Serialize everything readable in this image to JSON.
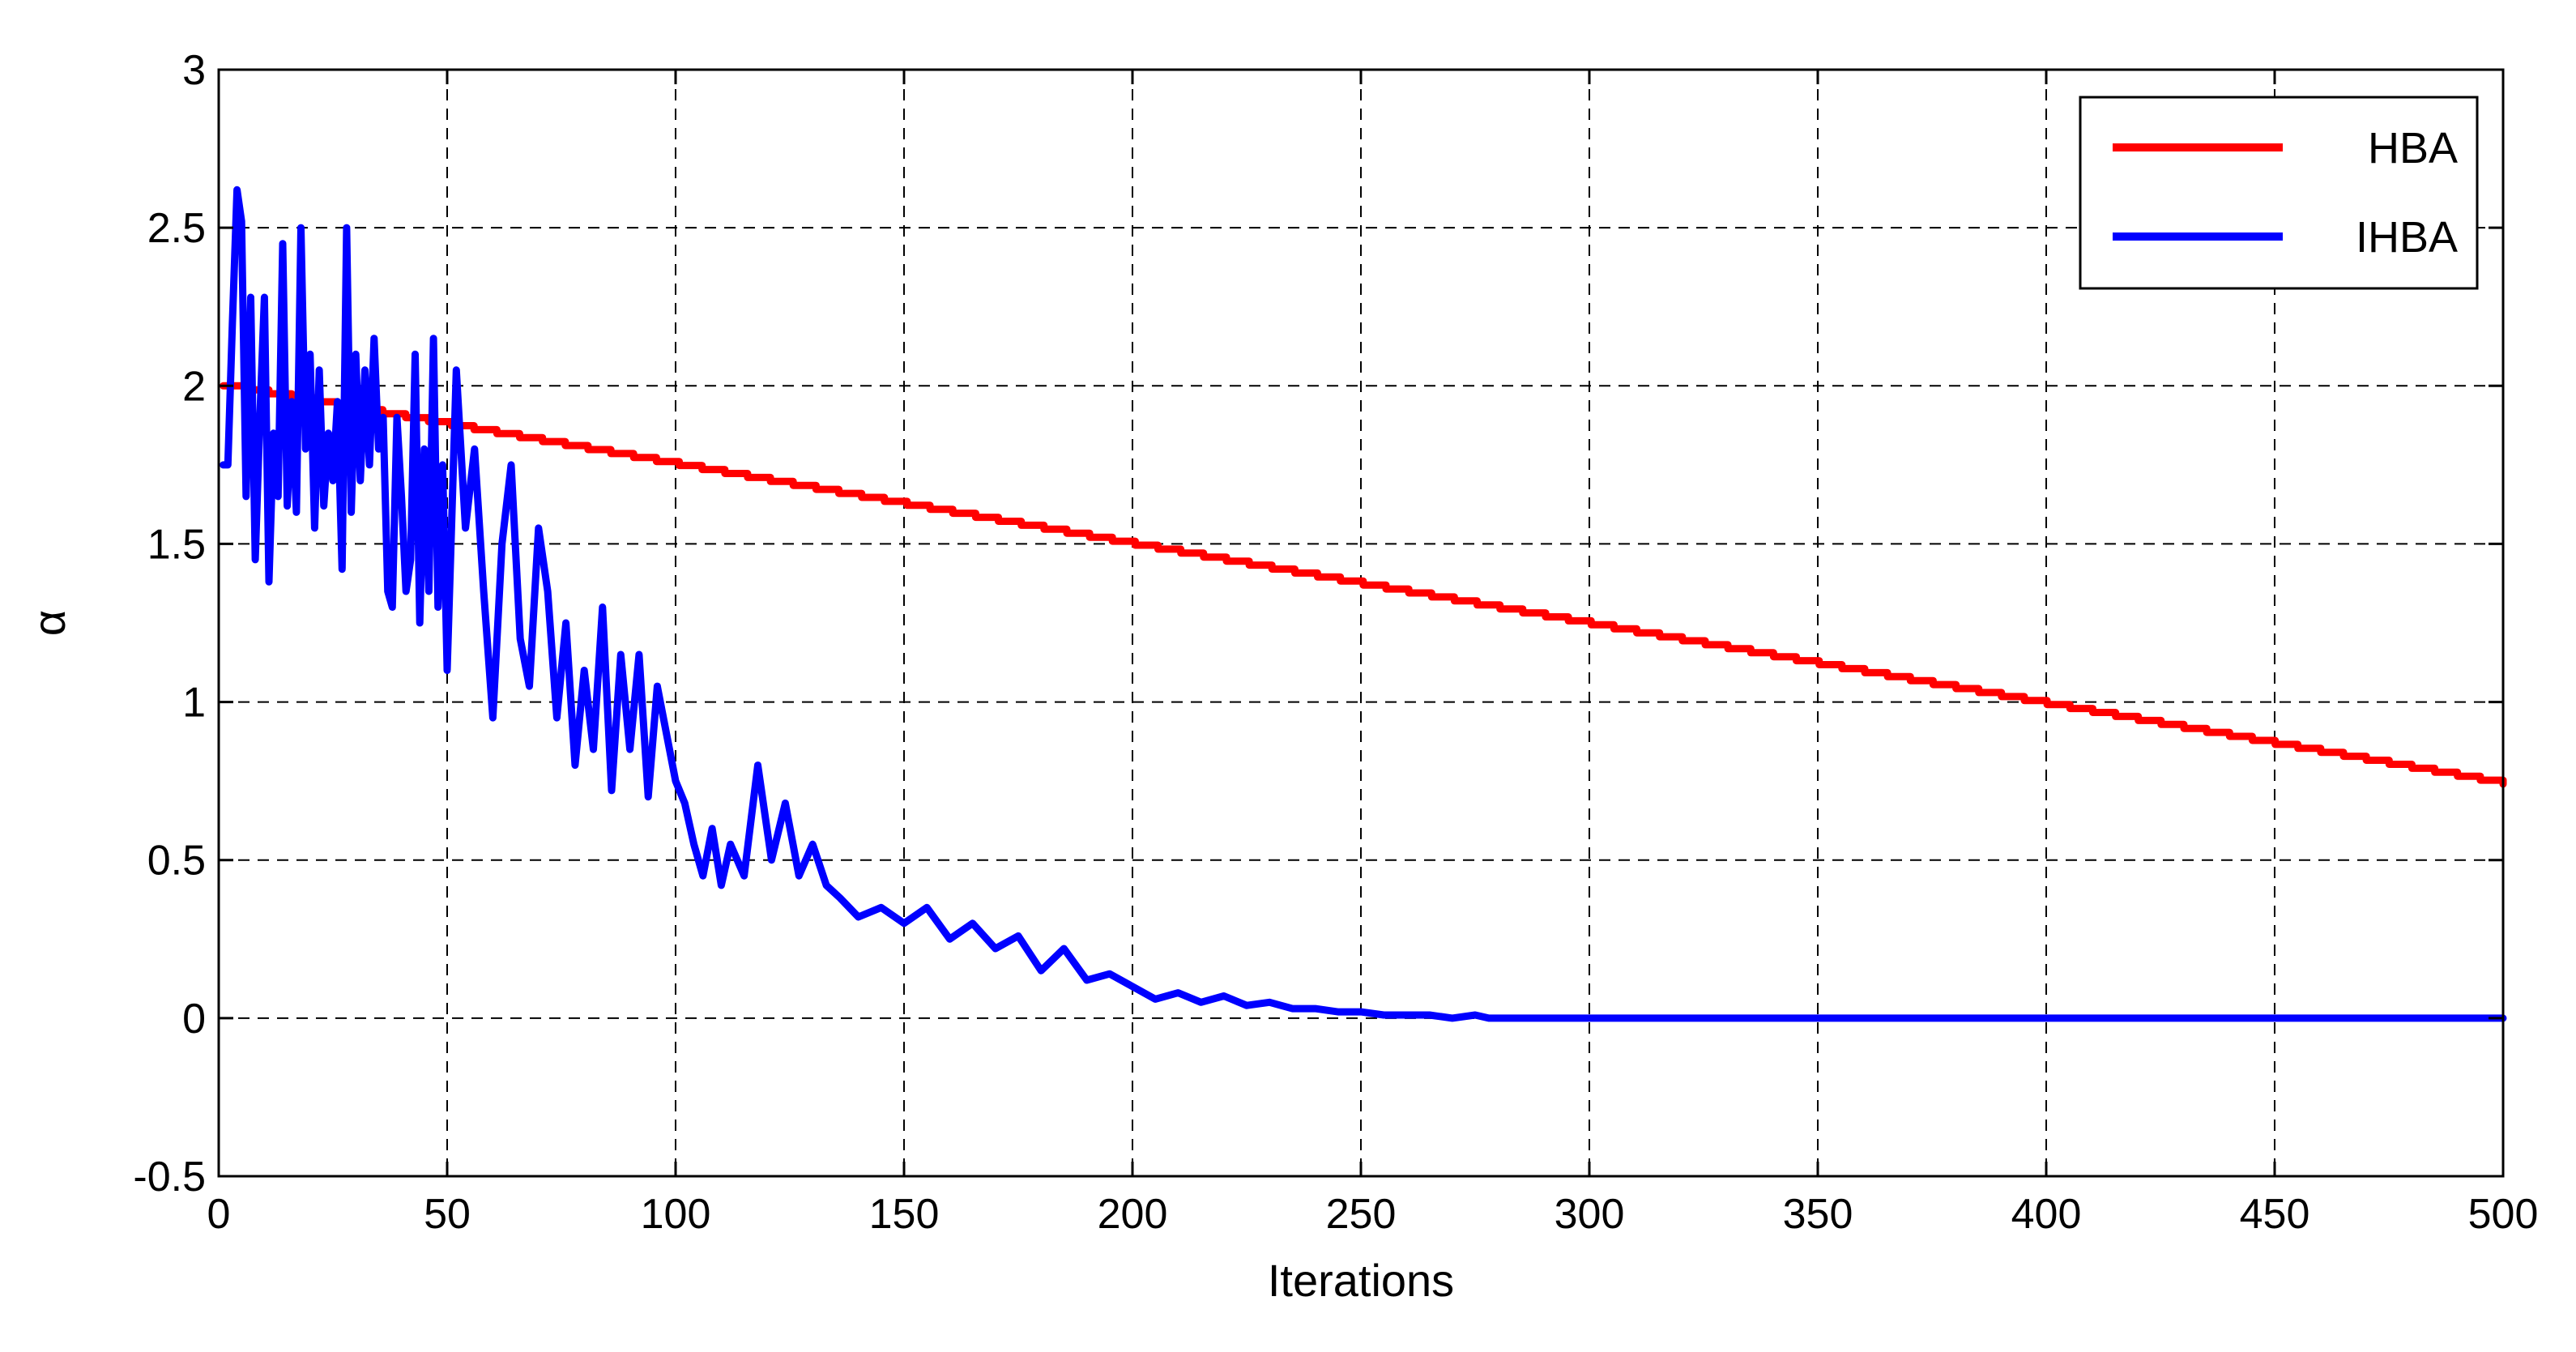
{
  "chart_data": {
    "type": "line",
    "xlabel": "Iterations",
    "ylabel": "α",
    "xlim": [
      0,
      500
    ],
    "ylim": [
      -0.5,
      3
    ],
    "xticks": [
      0,
      50,
      100,
      150,
      200,
      250,
      300,
      350,
      400,
      450,
      500
    ],
    "yticks": [
      -0.5,
      0,
      0.5,
      1,
      1.5,
      2,
      2.5,
      3
    ],
    "x_tick_labels": [
      "0",
      "50",
      "100",
      "150",
      "200",
      "250",
      "300",
      "350",
      "400",
      "450",
      "500"
    ],
    "y_tick_labels": [
      "-0.5",
      "0",
      "0.5",
      "1",
      "1.5",
      "2",
      "2.5",
      "3"
    ],
    "grid": true,
    "grid_style": "dashed",
    "legend_position": "top-right",
    "series": [
      {
        "name": "HBA",
        "color": "#ff0000",
        "x": [
          1,
          500
        ],
        "y": [
          2.0,
          0.74
        ]
      },
      {
        "name": "IHBA",
        "color": "#0000ff",
        "x": [
          1,
          2,
          3,
          4,
          5,
          6,
          7,
          8,
          9,
          10,
          11,
          12,
          13,
          14,
          15,
          16,
          17,
          18,
          19,
          20,
          21,
          22,
          23,
          24,
          25,
          26,
          27,
          28,
          29,
          30,
          31,
          32,
          33,
          34,
          35,
          36,
          37,
          38,
          39,
          40,
          41,
          42,
          43,
          44,
          45,
          46,
          47,
          48,
          49,
          50,
          52,
          54,
          56,
          58,
          60,
          62,
          64,
          66,
          68,
          70,
          72,
          74,
          76,
          78,
          80,
          82,
          84,
          86,
          88,
          90,
          92,
          94,
          96,
          98,
          100,
          102,
          104,
          106,
          108,
          110,
          112,
          115,
          118,
          121,
          124,
          127,
          130,
          133,
          136,
          140,
          145,
          150,
          155,
          160,
          165,
          170,
          175,
          180,
          185,
          190,
          195,
          200,
          205,
          210,
          215,
          220,
          225,
          230,
          235,
          240,
          245,
          250,
          255,
          260,
          265,
          270,
          275,
          278,
          300,
          350,
          400,
          450,
          500
        ],
        "y": [
          1.75,
          1.75,
          2.2,
          2.62,
          2.52,
          1.65,
          2.28,
          1.45,
          1.9,
          2.28,
          1.38,
          1.85,
          1.65,
          2.45,
          1.62,
          1.95,
          1.6,
          2.5,
          1.8,
          2.1,
          1.55,
          2.05,
          1.62,
          1.85,
          1.7,
          1.95,
          1.42,
          2.5,
          1.6,
          2.1,
          1.7,
          2.05,
          1.75,
          2.15,
          1.8,
          1.9,
          1.35,
          1.3,
          1.9,
          1.65,
          1.35,
          1.45,
          2.1,
          1.25,
          1.8,
          1.35,
          2.15,
          1.3,
          1.75,
          1.1,
          2.05,
          1.55,
          1.8,
          1.35,
          0.95,
          1.5,
          1.75,
          1.2,
          1.05,
          1.55,
          1.35,
          0.95,
          1.25,
          0.8,
          1.1,
          0.85,
          1.3,
          0.72,
          1.15,
          0.85,
          1.15,
          0.7,
          1.05,
          0.9,
          0.75,
          0.68,
          0.55,
          0.45,
          0.6,
          0.42,
          0.55,
          0.45,
          0.8,
          0.5,
          0.68,
          0.45,
          0.55,
          0.42,
          0.38,
          0.32,
          0.35,
          0.3,
          0.35,
          0.25,
          0.3,
          0.22,
          0.26,
          0.15,
          0.22,
          0.12,
          0.14,
          0.1,
          0.06,
          0.08,
          0.05,
          0.07,
          0.04,
          0.05,
          0.03,
          0.03,
          0.02,
          0.02,
          0.01,
          0.01,
          0.01,
          0.0,
          0.01,
          0.0,
          0.0,
          0.0,
          0.0,
          0.0,
          0.0
        ]
      }
    ]
  }
}
